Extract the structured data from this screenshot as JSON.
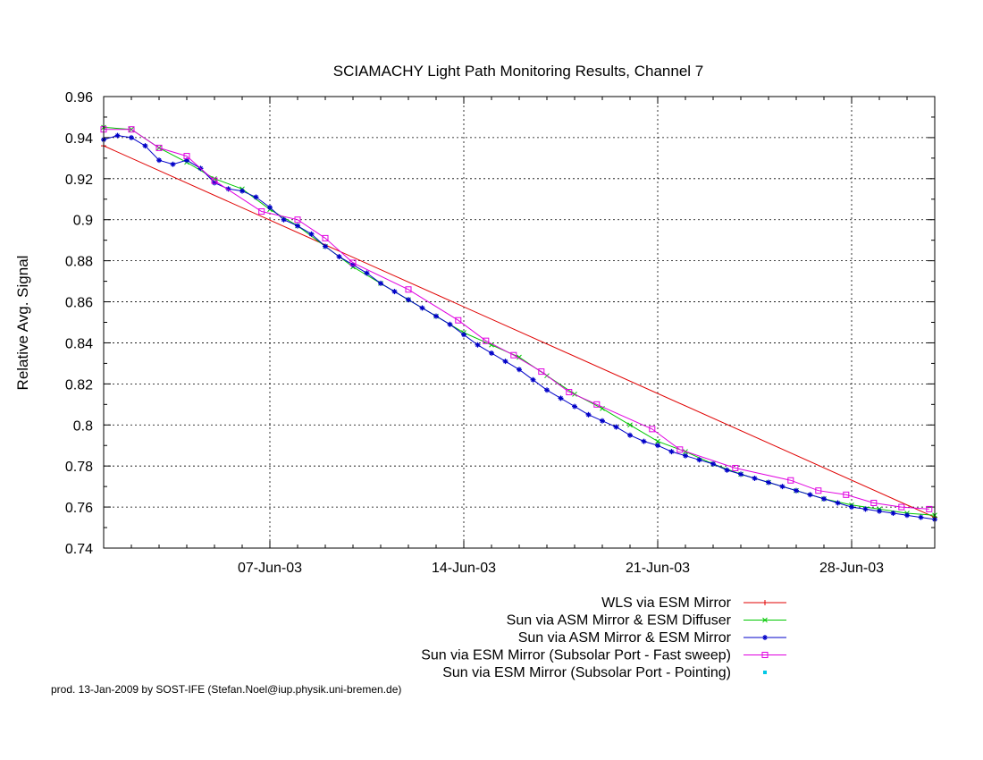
{
  "footer": "prod. 13-Jan-2009 by SOST-IFE (Stefan.Noel@iup.physik.uni-bremen.de)",
  "chart_data": {
    "type": "line",
    "title": "SCIAMACHY Light Path Monitoring Results, Channel 7",
    "xlabel": "",
    "ylabel": "Relative Avg. Signal",
    "x_unit": "day of June 2003",
    "xlim": [
      1,
      31
    ],
    "ylim": [
      0.74,
      0.96
    ],
    "yticks": [
      0.74,
      0.76,
      0.78,
      0.8,
      0.82,
      0.84,
      0.86,
      0.88,
      0.9,
      0.92,
      0.94,
      0.96
    ],
    "ytick_labels": [
      "0.74",
      "0.76",
      "0.78",
      "0.8",
      "0.82",
      "0.84",
      "0.86",
      "0.88",
      "0.9",
      "0.92",
      "0.94",
      "0.96"
    ],
    "xticks": [
      7,
      14,
      21,
      28
    ],
    "xtick_labels": [
      "07-Jun-03",
      "14-Jun-03",
      "21-Jun-03",
      "28-Jun-03"
    ],
    "grid": true,
    "legend_position": "below-plot-right",
    "series": [
      {
        "name": "WLS via ESM Mirror",
        "color": "#e00000",
        "marker": "plus",
        "x": [
          1,
          31
        ],
        "y": [
          0.936,
          0.755
        ]
      },
      {
        "name": "Sun via ASM Mirror & ESM Diffuser",
        "color": "#00c800",
        "marker": "x",
        "x": [
          1,
          2,
          3,
          4,
          5,
          6,
          7,
          8,
          9,
          10,
          11,
          12,
          13,
          14,
          15,
          16,
          17,
          18,
          19,
          20,
          21,
          22,
          23,
          24,
          25,
          26,
          27,
          28,
          29,
          30,
          31
        ],
        "y": [
          0.945,
          0.944,
          0.935,
          0.928,
          0.92,
          0.915,
          0.905,
          0.897,
          0.887,
          0.877,
          0.869,
          0.861,
          0.853,
          0.845,
          0.839,
          0.833,
          0.824,
          0.815,
          0.808,
          0.8,
          0.792,
          0.787,
          0.781,
          0.776,
          0.772,
          0.768,
          0.764,
          0.761,
          0.759,
          0.757,
          0.756
        ]
      },
      {
        "name": "Sun via ASM Mirror & ESM Mirror",
        "color": "#0000c8",
        "marker": "star",
        "x": [
          1,
          1.5,
          2,
          2.5,
          3,
          3.5,
          4,
          4.5,
          5,
          5.5,
          6,
          6.5,
          7,
          7.5,
          8,
          8.5,
          9,
          9.5,
          10,
          10.5,
          11,
          11.5,
          12,
          12.5,
          13,
          13.5,
          14,
          14.5,
          15,
          15.5,
          16,
          16.5,
          17,
          17.5,
          18,
          18.5,
          19,
          19.5,
          20,
          20.5,
          21,
          21.5,
          22,
          22.5,
          23,
          23.5,
          24,
          24.5,
          25,
          25.5,
          26,
          26.5,
          27,
          27.5,
          28,
          28.5,
          29,
          29.5,
          30,
          30.5,
          31
        ],
        "y": [
          0.939,
          0.941,
          0.94,
          0.936,
          0.929,
          0.927,
          0.929,
          0.925,
          0.918,
          0.915,
          0.914,
          0.911,
          0.906,
          0.9,
          0.897,
          0.893,
          0.887,
          0.882,
          0.878,
          0.874,
          0.869,
          0.865,
          0.861,
          0.857,
          0.853,
          0.849,
          0.844,
          0.839,
          0.835,
          0.831,
          0.827,
          0.822,
          0.817,
          0.813,
          0.809,
          0.805,
          0.802,
          0.799,
          0.795,
          0.792,
          0.79,
          0.787,
          0.785,
          0.783,
          0.781,
          0.778,
          0.776,
          0.774,
          0.772,
          0.77,
          0.768,
          0.766,
          0.764,
          0.762,
          0.76,
          0.759,
          0.758,
          0.757,
          0.756,
          0.755,
          0.754
        ]
      },
      {
        "name": "Sun via ESM Mirror (Subsolar Port - Fast sweep)",
        "color": "#e000e0",
        "marker": "square",
        "x": [
          1,
          2,
          3,
          4,
          5,
          6.7,
          8,
          9,
          10,
          12,
          13.8,
          14.8,
          15.8,
          16.8,
          17.8,
          18.8,
          20.8,
          21.8,
          23.8,
          25.8,
          26.8,
          27.8,
          28.8,
          29.8,
          30.8
        ],
        "y": [
          0.944,
          0.944,
          0.935,
          0.931,
          0.919,
          0.904,
          0.9,
          0.891,
          0.879,
          0.866,
          0.851,
          0.841,
          0.834,
          0.826,
          0.816,
          0.81,
          0.798,
          0.788,
          0.779,
          0.773,
          0.768,
          0.766,
          0.762,
          0.76,
          0.759
        ]
      },
      {
        "name": "Sun via ESM Mirror (Subsolar Port - Pointing)",
        "color": "#00c8e6",
        "marker": "dot",
        "x": [],
        "y": []
      }
    ]
  }
}
